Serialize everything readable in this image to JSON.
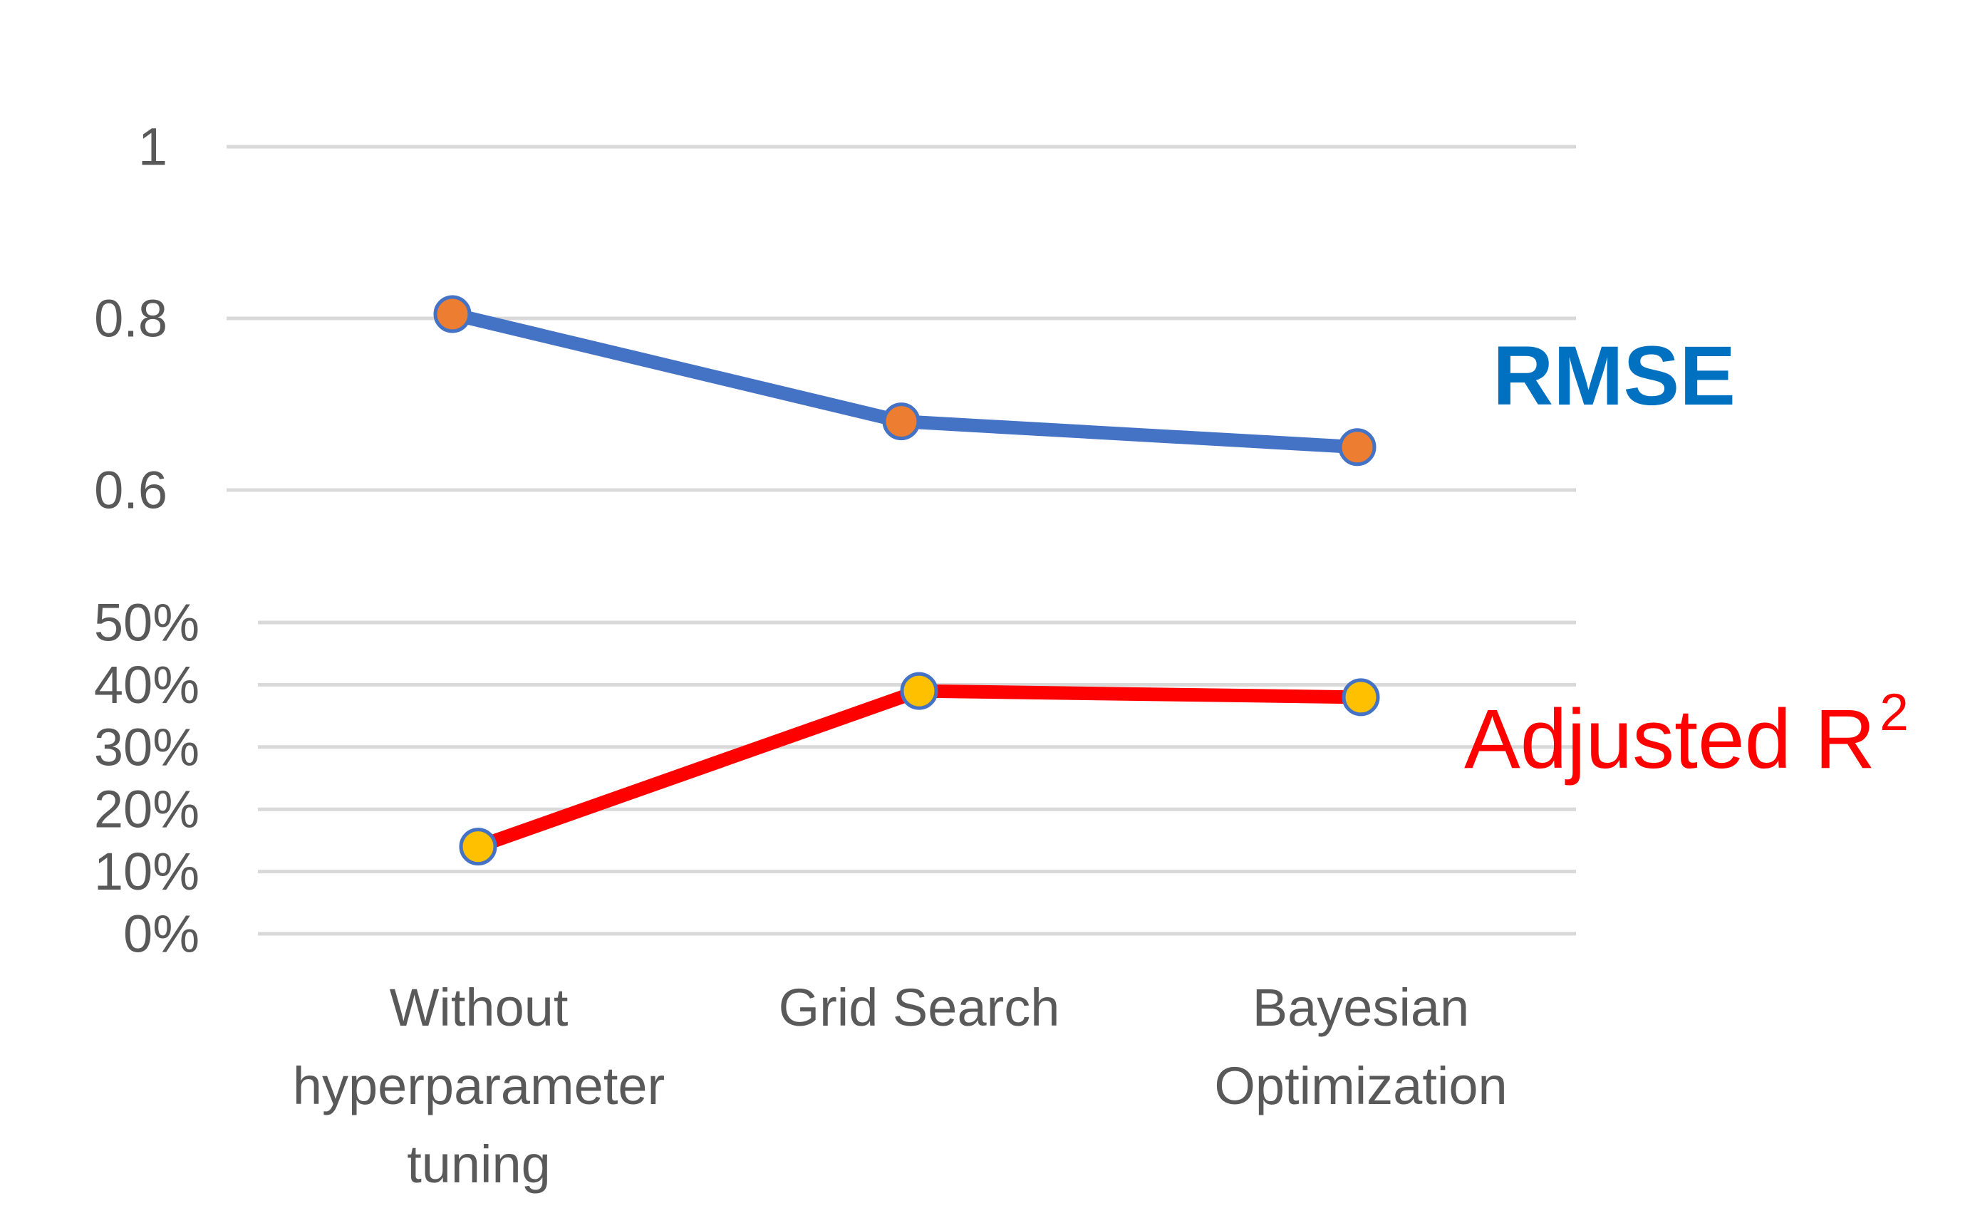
{
  "chart_data": [
    {
      "type": "line",
      "categories": [
        [
          "Without",
          "hyperparameter",
          "tuning"
        ],
        [
          "Grid Search"
        ],
        [
          "Bayesian",
          "Optimization"
        ]
      ],
      "ylim": [
        0.6,
        1.0
      ],
      "yticks": [
        "1",
        "0.8",
        "0.6"
      ],
      "grid": true,
      "series": [
        {
          "name": "RMSE",
          "values": [
            0.805,
            0.68,
            0.65
          ],
          "line_color": "#4472C4",
          "marker_color": "#ED7D31",
          "label_color": "#0070C0"
        }
      ]
    },
    {
      "type": "line",
      "categories": [
        [
          "Without",
          "hyperparameter",
          "tuning"
        ],
        [
          "Grid Search"
        ],
        [
          "Bayesian",
          "Optimization"
        ]
      ],
      "ylim": [
        0,
        50
      ],
      "yticks": [
        "50%",
        "40%",
        "30%",
        "20%",
        "10%",
        "0%"
      ],
      "grid": true,
      "series": [
        {
          "name": "Adjusted R",
          "name_superscript": "2",
          "values": [
            14,
            39,
            38
          ],
          "line_color": "#FF0000",
          "marker_color": "#FFC000",
          "label_color": "#FF0000"
        }
      ]
    }
  ]
}
